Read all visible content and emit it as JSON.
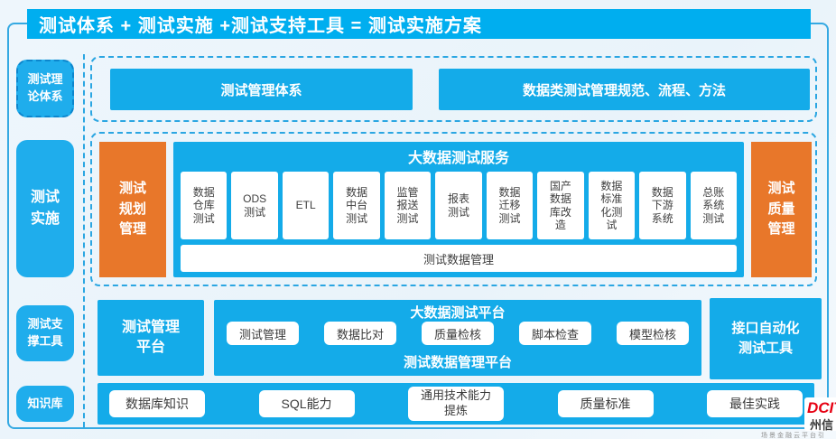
{
  "header": {
    "title": "测试体系 + 测试实施 +测试支持工具 = 测试实施方案"
  },
  "sidebar": {
    "theory": "测试理\n论体系",
    "implementation": "测试\n实施",
    "tools": "测试支\n撑工具",
    "knowledge": "知识库"
  },
  "theory_row": {
    "box1": "测试管理体系",
    "box2": "数据类测试管理规范、流程、方法"
  },
  "impl_row": {
    "left": "测试\n规划\n管理",
    "right": "测试\n质量\n管理",
    "service_title": "大数据测试服务",
    "cells": [
      "数据\n仓库\n测试",
      "ODS\n测试",
      "ETL",
      "数据\n中台\n测试",
      "监管\n报送\n测试",
      "报表\n测试",
      "数据\n迁移\n测试",
      "国产\n数据\n库改\n造",
      "数据\n标准\n化测\n试",
      "数据\n下游\n系统",
      "总账\n系统\n测试"
    ],
    "footer": "测试数据管理"
  },
  "tools_row": {
    "left": "测试管理\n平台",
    "platform_title": "大数据测试平台",
    "buttons": [
      "测试管理",
      "数据比对",
      "质量检核",
      "脚本检查",
      "模型检核"
    ],
    "platform_footer": "测试数据管理平台",
    "right": "接口自动化\n测试工具"
  },
  "knowledge_row": {
    "items": [
      "数据库知识",
      "SQL能力",
      "通用技术能力\n提炼",
      "质量标准",
      "最佳实践"
    ]
  },
  "logo": {
    "brand": "DCIT",
    "cn": "州信",
    "tagline": "场景金融云平台引"
  },
  "colors": {
    "accent": "#00aeef",
    "box_blue": "#14abe9",
    "orange": "#e8772a",
    "dashed_border": "#2ba6e2"
  }
}
